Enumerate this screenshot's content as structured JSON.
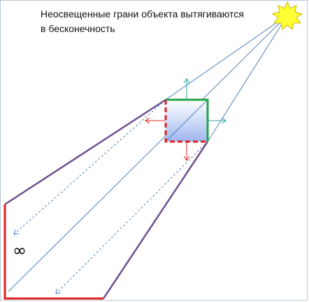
{
  "caption": {
    "line1": "Неосвещенные грани объекта вытягиваются",
    "line2": "в бесконечность"
  },
  "infinity_symbol": "∞",
  "icons": {
    "light_source": "sun-icon",
    "object": "square-object-icon"
  },
  "colors": {
    "shadow_volume_edge": "#6f4f8f",
    "unlit_face": "#e02020",
    "lit_face": "#22a447",
    "ray": "#4f81bd",
    "sun_fill": "#ffff33",
    "object_fill_top": "#ffffff",
    "object_fill_bottom": "#9fb7ef"
  }
}
